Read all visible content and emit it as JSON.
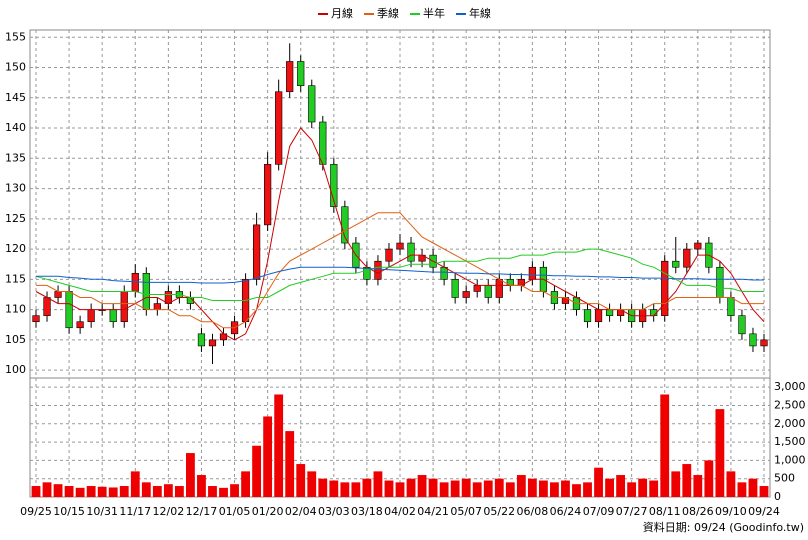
{
  "chart_data": [
    {
      "type": "candlestick",
      "note": "資料日期: 09/24 (Goodinfo.tw)",
      "categories": [
        "09/25",
        null,
        null,
        "10/15",
        null,
        null,
        "10/31",
        null,
        null,
        "11/17",
        null,
        null,
        "12/02",
        null,
        null,
        "12/17",
        null,
        null,
        "01/05",
        null,
        null,
        "01/20",
        null,
        null,
        "02/04",
        null,
        null,
        "03/03",
        null,
        null,
        "03/18",
        null,
        null,
        "04/02",
        null,
        null,
        "04/21",
        null,
        null,
        "05/07",
        null,
        null,
        "05/22",
        null,
        null,
        "06/08",
        null,
        null,
        "06/24",
        null,
        null,
        "07/09",
        null,
        null,
        "07/27",
        null,
        null,
        "08/11",
        null,
        null,
        "08/26",
        null,
        null,
        "09/10",
        null,
        null,
        "09/24"
      ],
      "open": [
        108,
        109,
        112,
        113,
        107,
        108,
        110,
        110,
        108,
        113,
        116,
        110,
        111,
        113,
        112,
        106,
        104,
        105,
        106,
        108,
        115,
        124,
        134,
        146,
        151,
        147,
        141,
        134,
        127,
        121,
        117,
        115,
        118,
        120,
        121,
        118,
        119,
        117,
        115,
        112,
        113,
        114,
        112,
        115,
        114,
        115,
        117,
        113,
        111,
        112,
        110,
        108,
        110,
        109,
        110,
        108,
        110,
        109,
        118,
        117,
        120,
        121,
        117,
        112,
        109,
        106,
        104
      ],
      "high": [
        110,
        113,
        114,
        114,
        109,
        111,
        111,
        111,
        114,
        117.5,
        117,
        112,
        114,
        114,
        113,
        107,
        106,
        107,
        109,
        116,
        126,
        136,
        148,
        154,
        152,
        148,
        142,
        135,
        128,
        122,
        118,
        119,
        121,
        122.5,
        122,
        120,
        120,
        118,
        116,
        114,
        115,
        115,
        116,
        116,
        116,
        118,
        118,
        114,
        113,
        113,
        111,
        111,
        111,
        111,
        111,
        111,
        111,
        119,
        122,
        121,
        121.5,
        122,
        118,
        113,
        110,
        107,
        106
      ],
      "low": [
        107,
        108,
        111,
        106,
        106,
        107,
        109,
        107,
        107,
        112,
        109,
        109,
        110,
        111,
        110,
        103,
        101,
        104,
        105,
        107,
        114,
        123,
        133,
        145,
        146,
        140,
        133,
        126,
        120,
        116,
        114,
        114,
        117,
        119,
        117,
        117,
        116,
        114,
        111,
        111,
        112,
        111,
        111,
        113,
        113,
        114,
        112,
        110,
        110,
        109,
        107,
        107,
        108,
        108,
        107,
        107,
        108,
        108,
        116,
        116,
        119,
        116,
        111,
        108,
        105,
        103,
        103
      ],
      "close": [
        109,
        112,
        113,
        107,
        108,
        110,
        110,
        108,
        113,
        116,
        110,
        111,
        113,
        112,
        111,
        104,
        105,
        106,
        108,
        115,
        124,
        134,
        146,
        151,
        147,
        141,
        134,
        127,
        121,
        117,
        115,
        118,
        120,
        121,
        118,
        119,
        117,
        115,
        112,
        113,
        114,
        112,
        115,
        114,
        115,
        117,
        113,
        111,
        112,
        110,
        108,
        110,
        109,
        110,
        108,
        110,
        109,
        118,
        117,
        120,
        121,
        117,
        112,
        109,
        106,
        104,
        105
      ],
      "up_color": "#ee1111",
      "down_color": "#22cc22",
      "series": [
        {
          "name": "月線",
          "color": "#cc0000",
          "values": [
            113,
            112,
            111,
            111,
            110,
            110,
            110,
            110,
            110,
            111,
            112,
            112,
            111,
            112,
            112,
            110,
            108,
            106,
            105,
            106,
            110,
            118,
            128,
            137,
            140,
            138,
            134,
            128,
            122,
            119,
            117,
            116,
            117,
            118,
            119,
            119,
            118,
            117,
            116,
            115,
            114,
            114,
            114,
            114,
            114,
            115,
            115,
            114,
            113,
            112,
            111,
            110,
            110,
            110,
            109,
            109,
            109,
            111,
            113,
            116,
            119,
            119,
            118,
            116,
            113,
            110,
            108
          ]
        },
        {
          "name": "季線",
          "color": "#e06010",
          "values": [
            114,
            114,
            113,
            113,
            112,
            112,
            111,
            111,
            111,
            111,
            110,
            110,
            110,
            109,
            109,
            108,
            108,
            107,
            107,
            108,
            110,
            113,
            116,
            118,
            119,
            120,
            121,
            122,
            123,
            124,
            125,
            126,
            126,
            126,
            124,
            122,
            121,
            120,
            119,
            118,
            117,
            116,
            115,
            114,
            114,
            113,
            113,
            112,
            112,
            111,
            111,
            111,
            110,
            110,
            110,
            110,
            111,
            111,
            112,
            112,
            112,
            112,
            112,
            112,
            111,
            111,
            111
          ]
        },
        {
          "name": "半年",
          "color": "#22cc22",
          "values": [
            115.5,
            115,
            114.5,
            114,
            113.5,
            113,
            113,
            113,
            113,
            113,
            112.5,
            112.5,
            112.5,
            112.5,
            112,
            112,
            111.5,
            111.5,
            111.5,
            111.5,
            112,
            112,
            113,
            114,
            114.5,
            115,
            115.5,
            116,
            116,
            116,
            116.5,
            117,
            117,
            117,
            117.5,
            117.5,
            117.5,
            118,
            118,
            118,
            118,
            118.5,
            118.5,
            118.5,
            119,
            119,
            119,
            119.5,
            119.5,
            119.5,
            120,
            120,
            119.5,
            119,
            118.5,
            117.5,
            117,
            116,
            115,
            114,
            114,
            114,
            113.5,
            113.5,
            113,
            113,
            113
          ]
        },
        {
          "name": "年線",
          "color": "#1060cc",
          "values": [
            115.5,
            115.5,
            115.5,
            115.3,
            115.2,
            115,
            115,
            114.8,
            114.7,
            114.6,
            114.5,
            114.5,
            114.5,
            114.5,
            114.5,
            114.4,
            114.4,
            114.4,
            114.5,
            114.8,
            115.2,
            115.8,
            116.3,
            116.7,
            117,
            117,
            117,
            117,
            117,
            116.9,
            116.8,
            116.7,
            116.6,
            116.5,
            116.4,
            116.3,
            116.2,
            116.2,
            116.1,
            116,
            116,
            115.9,
            115.9,
            115.8,
            115.8,
            115.7,
            115.7,
            115.6,
            115.6,
            115.5,
            115.5,
            115.4,
            115.4,
            115.3,
            115.3,
            115.2,
            115.2,
            115.2,
            115.1,
            115.1,
            115.1,
            115,
            115,
            115,
            115,
            114.9,
            114.9
          ]
        }
      ],
      "ylim": [
        98.7,
        156.2
      ],
      "yticks": [
        100,
        105,
        110,
        115,
        120,
        125,
        130,
        135,
        140,
        145,
        150,
        155
      ],
      "grid": true
    },
    {
      "type": "bar",
      "color": "#ee0000",
      "values": [
        300,
        400,
        350,
        300,
        250,
        300,
        280,
        260,
        300,
        700,
        400,
        300,
        350,
        300,
        1200,
        600,
        300,
        250,
        350,
        700,
        1400,
        2200,
        2800,
        1800,
        900,
        700,
        500,
        450,
        400,
        400,
        500,
        700,
        450,
        400,
        500,
        600,
        500,
        400,
        450,
        500,
        400,
        450,
        500,
        400,
        600,
        500,
        450,
        400,
        450,
        350,
        400,
        800,
        500,
        600,
        400,
        500,
        450,
        2800,
        700,
        900,
        600,
        1000,
        2400,
        700,
        400,
        500,
        300
      ],
      "ylim": [
        0,
        3250
      ],
      "yticks": [
        0,
        500,
        {
          "value": 1000,
          "label": "1,000"
        },
        {
          "value": 1500,
          "label": "1,500"
        },
        {
          "value": 2000,
          "label": "2,000"
        },
        {
          "value": 2500,
          "label": "2,500"
        },
        {
          "value": 3000,
          "label": "3,000"
        }
      ],
      "grid": true
    }
  ]
}
